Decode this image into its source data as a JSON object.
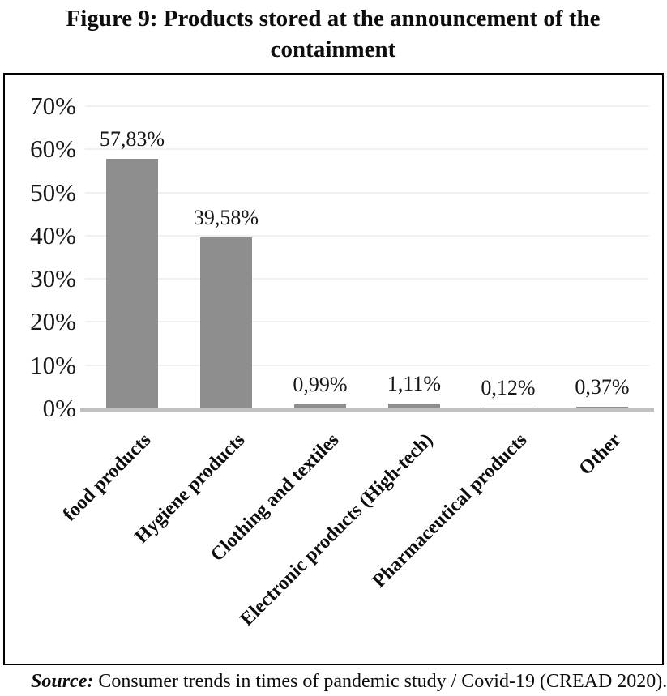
{
  "figure": {
    "title": "Figure 9: Products stored at the announcement of the containment",
    "source_label": "Source:",
    "source_text": " Consumer trends in times of pandemic study / Covid-19 (CREAD 2020)."
  },
  "chart_data": {
    "type": "bar",
    "title": "Figure 9: Products stored at the announcement of the containment",
    "categories": [
      "food products",
      "Hygiene products",
      "Clothing and textiles",
      "Electronic products (High-tech)",
      "Pharmaceutical products",
      "Other"
    ],
    "values": [
      57.83,
      39.58,
      0.99,
      1.11,
      0.12,
      0.37
    ],
    "value_labels": [
      "57,83%",
      "39,58%",
      "0,99%",
      "1,11%",
      "0,12%",
      "0,37%"
    ],
    "y_ticks": [
      "0%",
      "10%",
      "20%",
      "30%",
      "40%",
      "50%",
      "60%",
      "70%"
    ],
    "ylim": [
      0,
      70
    ],
    "y_step": 10,
    "xlabel": "",
    "ylabel": "",
    "grid": true,
    "legend": "none",
    "decimal_separator": ",",
    "colors": {
      "bar": "#8e8e8e",
      "gridline": "#f0f0f0",
      "axis_line": "#c1c1c1",
      "text": "#171717",
      "frame_border": "#000000"
    },
    "source": "Source: Consumer trends in times of pandemic study / Covid-19 (CREAD 2020)."
  }
}
